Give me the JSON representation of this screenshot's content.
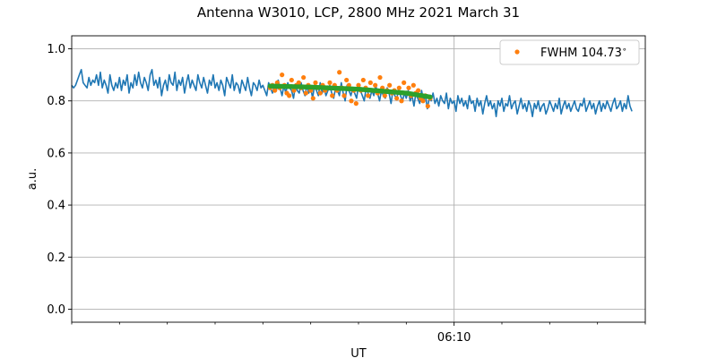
{
  "chart_data": {
    "type": "line",
    "title": "Antenna W3010, LCP, 2800 MHz 2021 March 31",
    "xlabel": "UT",
    "ylabel": "a.u.",
    "x_range_minutes": [
      0,
      240
    ],
    "x_ticks": [
      {
        "value": 160,
        "label": "06:10"
      }
    ],
    "x_minor_ticks": [
      0,
      20,
      40,
      60,
      80,
      100,
      120,
      140,
      180,
      200,
      220,
      240
    ],
    "ylim": [
      -0.05,
      1.05
    ],
    "y_ticks": [
      0.0,
      0.2,
      0.4,
      0.6,
      0.8,
      1.0
    ],
    "y_tick_labels": [
      "0.0",
      "0.2",
      "0.4",
      "0.6",
      "0.8",
      "1.0"
    ],
    "grid": true,
    "legend": {
      "placement": "top-right",
      "entries": [
        "FWHM 104.73$^\\circ$"
      ]
    },
    "colors": {
      "signal": "#1f77b4",
      "samples": "#ff7f0e",
      "fit": "#2ca02c",
      "grid": "#b0b0b0"
    },
    "series": [
      {
        "type": "line",
        "x_step": 0.8,
        "values": [
          0.86,
          0.85,
          0.86,
          0.88,
          0.9,
          0.92,
          0.87,
          0.86,
          0.85,
          0.89,
          0.86,
          0.88,
          0.87,
          0.9,
          0.86,
          0.91,
          0.85,
          0.88,
          0.86,
          0.83,
          0.9,
          0.86,
          0.84,
          0.87,
          0.85,
          0.89,
          0.84,
          0.88,
          0.86,
          0.9,
          0.83,
          0.87,
          0.85,
          0.9,
          0.86,
          0.91,
          0.87,
          0.85,
          0.89,
          0.87,
          0.84,
          0.9,
          0.92,
          0.86,
          0.88,
          0.85,
          0.89,
          0.82,
          0.86,
          0.88,
          0.84,
          0.9,
          0.87,
          0.86,
          0.91,
          0.84,
          0.88,
          0.86,
          0.89,
          0.83,
          0.87,
          0.9,
          0.85,
          0.88,
          0.86,
          0.84,
          0.9,
          0.87,
          0.85,
          0.89,
          0.86,
          0.83,
          0.88,
          0.86,
          0.9,
          0.85,
          0.87,
          0.84,
          0.88,
          0.86,
          0.82,
          0.89,
          0.87,
          0.85,
          0.9,
          0.84,
          0.87,
          0.86,
          0.83,
          0.88,
          0.86,
          0.84,
          0.89,
          0.85,
          0.82,
          0.87,
          0.86,
          0.84,
          0.88,
          0.85,
          0.86,
          0.84,
          0.82,
          0.87,
          0.85,
          0.83,
          0.86,
          0.84,
          0.88,
          0.85,
          0.82,
          0.86,
          0.83,
          0.87,
          0.85,
          0.84,
          0.81,
          0.86,
          0.84,
          0.83,
          0.87,
          0.84,
          0.82,
          0.86,
          0.83,
          0.85,
          0.81,
          0.86,
          0.84,
          0.82,
          0.87,
          0.83,
          0.85,
          0.82,
          0.84,
          0.86,
          0.83,
          0.81,
          0.85,
          0.84,
          0.82,
          0.87,
          0.83,
          0.8,
          0.86,
          0.84,
          0.82,
          0.85,
          0.83,
          0.81,
          0.86,
          0.84,
          0.82,
          0.8,
          0.85,
          0.83,
          0.81,
          0.84,
          0.82,
          0.86,
          0.83,
          0.8,
          0.84,
          0.82,
          0.81,
          0.85,
          0.83,
          0.79,
          0.84,
          0.82,
          0.81,
          0.84,
          0.82,
          0.8,
          0.83,
          0.81,
          0.84,
          0.8,
          0.82,
          0.78,
          0.83,
          0.81,
          0.79,
          0.84,
          0.8,
          0.82,
          0.77,
          0.81,
          0.8,
          0.83,
          0.79,
          0.81,
          0.78,
          0.82,
          0.8,
          0.79,
          0.83,
          0.77,
          0.81,
          0.79,
          0.8,
          0.76,
          0.82,
          0.79,
          0.81,
          0.78,
          0.8,
          0.77,
          0.82,
          0.79,
          0.8,
          0.76,
          0.81,
          0.78,
          0.8,
          0.75,
          0.79,
          0.82,
          0.78,
          0.8,
          0.77,
          0.79,
          0.74,
          0.8,
          0.78,
          0.81,
          0.76,
          0.79,
          0.78,
          0.82,
          0.77,
          0.79,
          0.8,
          0.75,
          0.78,
          0.81,
          0.77,
          0.79,
          0.76,
          0.8,
          0.78,
          0.74,
          0.79,
          0.77,
          0.8,
          0.76,
          0.78,
          0.79,
          0.75,
          0.77,
          0.8,
          0.78,
          0.76,
          0.79,
          0.77,
          0.81,
          0.75,
          0.78,
          0.8,
          0.77,
          0.79,
          0.76,
          0.78,
          0.8,
          0.77,
          0.76,
          0.79,
          0.78,
          0.81,
          0.76,
          0.78,
          0.8,
          0.77,
          0.79,
          0.75,
          0.78,
          0.8,
          0.76,
          0.79,
          0.77,
          0.8,
          0.78,
          0.76,
          0.79,
          0.81,
          0.77,
          0.78,
          0.8,
          0.76,
          0.79,
          0.77,
          0.82,
          0.78,
          0.76
        ]
      },
      {
        "type": "scatter",
        "name": "FWHM 104.73$^\\circ$",
        "points": [
          [
            83,
            0.85
          ],
          [
            84,
            0.86
          ],
          [
            85,
            0.84
          ],
          [
            86,
            0.87
          ],
          [
            87,
            0.85
          ],
          [
            88,
            0.9
          ],
          [
            89,
            0.86
          ],
          [
            90,
            0.83
          ],
          [
            91,
            0.82
          ],
          [
            92,
            0.88
          ],
          [
            93,
            0.84
          ],
          [
            94,
            0.86
          ],
          [
            95,
            0.87
          ],
          [
            96,
            0.85
          ],
          [
            97,
            0.89
          ],
          [
            98,
            0.83
          ],
          [
            99,
            0.86
          ],
          [
            100,
            0.84
          ],
          [
            101,
            0.81
          ],
          [
            102,
            0.87
          ],
          [
            103,
            0.85
          ],
          [
            104,
            0.83
          ],
          [
            105,
            0.86
          ],
          [
            106,
            0.84
          ],
          [
            107,
            0.85
          ],
          [
            108,
            0.87
          ],
          [
            109,
            0.82
          ],
          [
            110,
            0.86
          ],
          [
            111,
            0.84
          ],
          [
            112,
            0.91
          ],
          [
            113,
            0.85
          ],
          [
            114,
            0.82
          ],
          [
            115,
            0.88
          ],
          [
            116,
            0.86
          ],
          [
            117,
            0.8
          ],
          [
            118,
            0.84
          ],
          [
            119,
            0.79
          ],
          [
            120,
            0.86
          ],
          [
            121,
            0.84
          ],
          [
            122,
            0.88
          ],
          [
            123,
            0.85
          ],
          [
            124,
            0.82
          ],
          [
            125,
            0.87
          ],
          [
            126,
            0.84
          ],
          [
            127,
            0.86
          ],
          [
            128,
            0.83
          ],
          [
            129,
            0.89
          ],
          [
            130,
            0.85
          ],
          [
            131,
            0.82
          ],
          [
            132,
            0.84
          ],
          [
            133,
            0.86
          ],
          [
            134,
            0.83
          ],
          [
            135,
            0.84
          ],
          [
            136,
            0.81
          ],
          [
            137,
            0.85
          ],
          [
            138,
            0.8
          ],
          [
            139,
            0.87
          ],
          [
            140,
            0.83
          ],
          [
            141,
            0.85
          ],
          [
            142,
            0.82
          ],
          [
            143,
            0.86
          ],
          [
            144,
            0.83
          ],
          [
            145,
            0.84
          ],
          [
            146,
            0.81
          ],
          [
            147,
            0.8
          ],
          [
            148,
            0.82
          ],
          [
            149,
            0.78
          ],
          [
            150,
            0.81
          ]
        ]
      },
      {
        "type": "line",
        "role": "fit",
        "points": [
          [
            83,
            0.857
          ],
          [
            100,
            0.853
          ],
          [
            120,
            0.845
          ],
          [
            140,
            0.83
          ],
          [
            150,
            0.815
          ]
        ]
      }
    ]
  }
}
